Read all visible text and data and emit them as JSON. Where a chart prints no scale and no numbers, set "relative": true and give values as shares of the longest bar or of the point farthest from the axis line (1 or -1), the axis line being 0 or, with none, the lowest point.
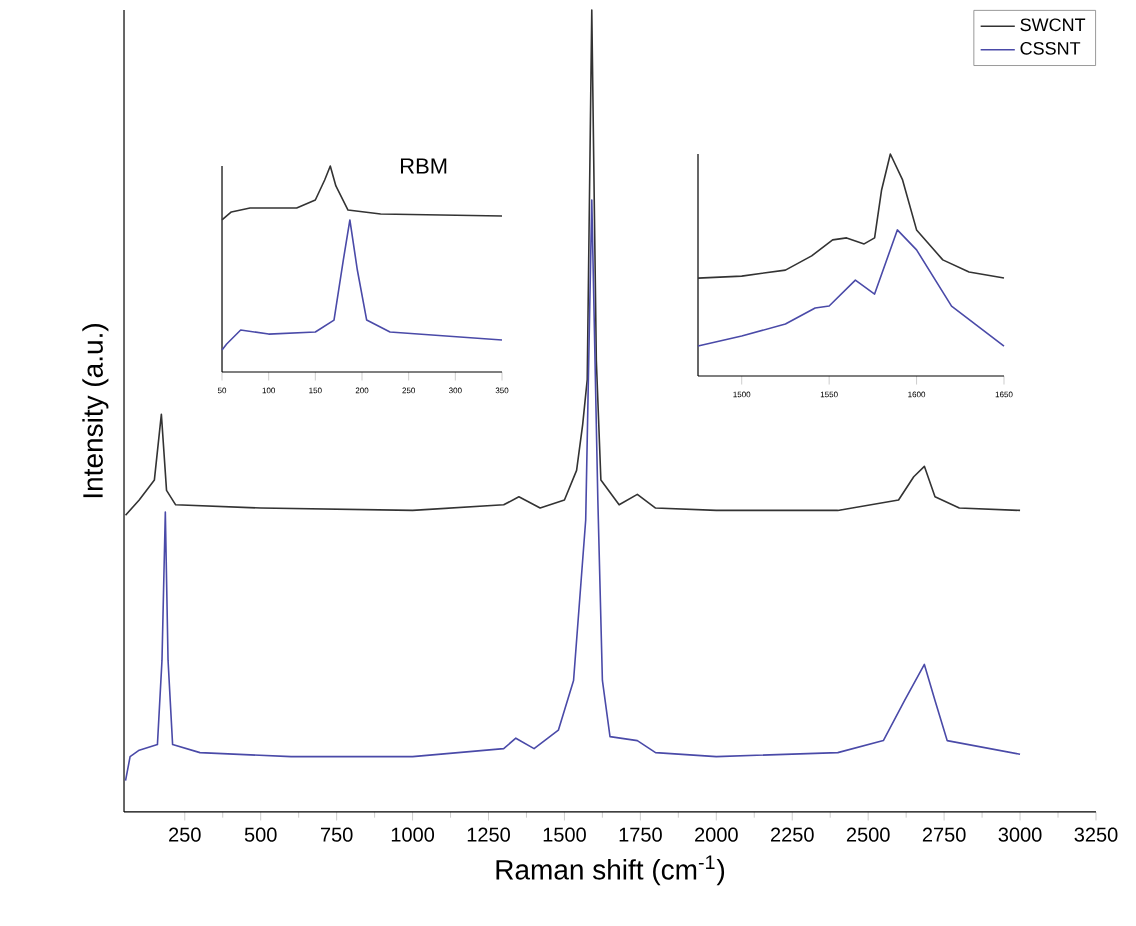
{
  "chart_data": [
    {
      "type": "line",
      "relative": true,
      "xlabel": "Raman shift (cm$^{-1}$)",
      "ylabel": "Intensity (a.u.)",
      "xlim": [
        50,
        3250
      ],
      "xticks": [
        250,
        500,
        750,
        1000,
        1250,
        1500,
        1750,
        2000,
        2250,
        2500,
        2750,
        3000,
        3250
      ],
      "legend": "top right",
      "series": [
        {
          "name": "SWCNT",
          "color": "#333333",
          "x": [
            55,
            100,
            150,
            173,
            190,
            220,
            500,
            1000,
            1300,
            1350,
            1420,
            1500,
            1540,
            1560,
            1575,
            1590,
            1605,
            1620,
            1680,
            1740,
            1800,
            2000,
            2400,
            2600,
            2650,
            2685,
            2720,
            2800,
            3000
          ],
          "values": [
            0.37,
            0.389,
            0.414,
            0.496,
            0.401,
            0.383,
            0.379,
            0.376,
            0.383,
            0.393,
            0.379,
            0.389,
            0.426,
            0.483,
            0.539,
            1.0,
            0.563,
            0.414,
            0.383,
            0.396,
            0.379,
            0.376,
            0.376,
            0.389,
            0.418,
            0.431,
            0.393,
            0.379,
            0.376
          ]
        },
        {
          "name": "CSSNT",
          "color": "#4a4aa8",
          "x": [
            55,
            70,
            100,
            160,
            175,
            186,
            195,
            210,
            300,
            600,
            1000,
            1300,
            1340,
            1400,
            1480,
            1530,
            1555,
            1570,
            1590,
            1610,
            1625,
            1650,
            1740,
            1800,
            2000,
            2400,
            2550,
            2620,
            2685,
            2720,
            2760,
            3000
          ],
          "values": [
            0.039,
            0.069,
            0.077,
            0.084,
            0.189,
            0.374,
            0.189,
            0.084,
            0.074,
            0.069,
            0.069,
            0.079,
            0.092,
            0.079,
            0.102,
            0.164,
            0.289,
            0.364,
            0.763,
            0.389,
            0.164,
            0.094,
            0.089,
            0.074,
            0.069,
            0.074,
            0.089,
            0.139,
            0.184,
            0.139,
            0.089,
            0.072
          ]
        }
      ]
    },
    {
      "type": "line",
      "relative": true,
      "annotations": [
        "RBM"
      ],
      "xlim": [
        50,
        350
      ],
      "xticks": [
        50,
        100,
        150,
        200,
        250,
        300,
        350
      ],
      "series": [
        {
          "color": "#333333",
          "x": [
            50,
            60,
            80,
            130,
            150,
            160,
            166,
            172,
            185,
            220,
            350
          ],
          "values": [
            0.738,
            0.777,
            0.796,
            0.796,
            0.835,
            0.932,
            1.0,
            0.903,
            0.786,
            0.767,
            0.757
          ]
        },
        {
          "color": "#4a4aa8",
          "x": [
            50,
            55,
            70,
            100,
            150,
            170,
            180,
            187,
            195,
            205,
            230,
            350
          ],
          "values": [
            0.107,
            0.136,
            0.204,
            0.184,
            0.194,
            0.252,
            0.544,
            0.738,
            0.495,
            0.252,
            0.194,
            0.155
          ]
        }
      ]
    },
    {
      "type": "line",
      "relative": true,
      "xlim": [
        1475,
        1650
      ],
      "xticks": [
        1500,
        1550,
        1600,
        1650
      ],
      "series": [
        {
          "color": "#333333",
          "x": [
            1475,
            1500,
            1525,
            1540,
            1552,
            1560,
            1570,
            1576,
            1580,
            1585,
            1592,
            1600,
            1615,
            1630,
            1650
          ],
          "values": [
            0.441,
            0.45,
            0.477,
            0.541,
            0.613,
            0.622,
            0.595,
            0.622,
            0.838,
            1.0,
            0.883,
            0.658,
            0.523,
            0.468,
            0.441
          ]
        },
        {
          "color": "#4a4aa8",
          "x": [
            1475,
            1500,
            1525,
            1542,
            1550,
            1565,
            1576,
            1589,
            1600,
            1620,
            1650
          ],
          "values": [
            0.135,
            0.18,
            0.234,
            0.306,
            0.315,
            0.432,
            0.369,
            0.658,
            0.568,
            0.315,
            0.135
          ]
        }
      ]
    }
  ]
}
